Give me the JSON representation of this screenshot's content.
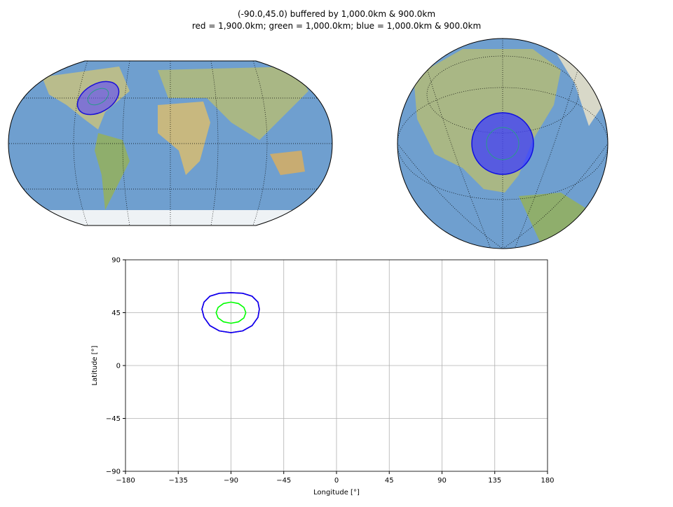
{
  "chart_data": {
    "type": "line",
    "title": "(-90.0,45.0) buffered by 1,000.0km & 900.0km",
    "subtitle": "red = 1,900.0km; green = 1,000.0km; blue = 1,000.0km & 900.0km",
    "x_label": "Longitude [°]",
    "y_label": "Latitude [°]",
    "xlim": [
      -180,
      180
    ],
    "ylim": [
      -90,
      90
    ],
    "xticks": [
      {
        "value": -180,
        "label": "−180"
      },
      {
        "value": -135,
        "label": "−135"
      },
      {
        "value": -90,
        "label": "−90"
      },
      {
        "value": -45,
        "label": "−45"
      },
      0,
      45,
      90,
      135,
      180
    ],
    "yticks": [
      {
        "value": -90,
        "label": "−90"
      },
      {
        "value": -45,
        "label": "−45"
      },
      0,
      45,
      90
    ],
    "grid": true,
    "series": [
      {
        "color": "red",
        "x": [
          -65.8,
          -67,
          -72,
          -80,
          -90,
          -100,
          -108,
          -113,
          -114.8,
          -113,
          -108,
          -100,
          -90,
          -80,
          -72,
          -67,
          -65.8
        ],
        "values": [
          48,
          54,
          59,
          61.5,
          62,
          61.5,
          59,
          54,
          48,
          41,
          34,
          29.5,
          28,
          29.5,
          34,
          41,
          48
        ]
      },
      {
        "color": "lime",
        "x": [
          -77.3,
          -79,
          -83.6,
          -90,
          -96.4,
          -101,
          -102.7,
          -101,
          -96.4,
          -90,
          -83.6,
          -79,
          -77.3
        ],
        "values": [
          45,
          49.5,
          52.8,
          54,
          52.8,
          49.5,
          45,
          40.5,
          37.2,
          36,
          37.2,
          40.5,
          45
        ]
      },
      {
        "color": "blue",
        "x": [
          -65.8,
          -67,
          -72,
          -80,
          -90,
          -100,
          -108,
          -113,
          -114.8,
          -113,
          -108,
          -100,
          -90,
          -80,
          -72,
          -67,
          -65.8
        ],
        "values": [
          48,
          54,
          59,
          61.5,
          62,
          61.5,
          59,
          54,
          48,
          41,
          34,
          29.5,
          28,
          29.5,
          34,
          41,
          48
        ]
      }
    ]
  }
}
